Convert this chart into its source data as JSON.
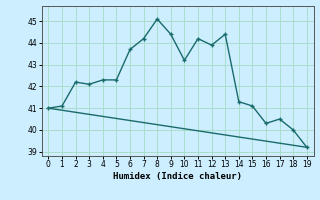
{
  "xlabel": "Humidex (Indice chaleur)",
  "xlim": [
    -0.5,
    19.5
  ],
  "ylim": [
    38.8,
    45.7
  ],
  "yticks": [
    39,
    40,
    41,
    42,
    43,
    44,
    45
  ],
  "xticks": [
    0,
    1,
    2,
    3,
    4,
    5,
    6,
    7,
    8,
    9,
    10,
    11,
    12,
    13,
    14,
    15,
    16,
    17,
    18,
    19
  ],
  "line_color": "#1a6b6b",
  "bg_color": "#cceeff",
  "grid_color": "#aaddcc",
  "line1_x": [
    0,
    1,
    2,
    3,
    4,
    5,
    6,
    7,
    8,
    9,
    10,
    11,
    12,
    13,
    14,
    15,
    16,
    17,
    18,
    19
  ],
  "line1_y": [
    41.0,
    41.1,
    42.2,
    42.1,
    42.3,
    42.3,
    43.7,
    44.2,
    45.1,
    44.4,
    43.2,
    44.2,
    43.9,
    44.4,
    41.3,
    41.1,
    40.3,
    40.5,
    40.0,
    39.2
  ],
  "line2_x": [
    0,
    19
  ],
  "line2_y": [
    41.0,
    39.2
  ]
}
